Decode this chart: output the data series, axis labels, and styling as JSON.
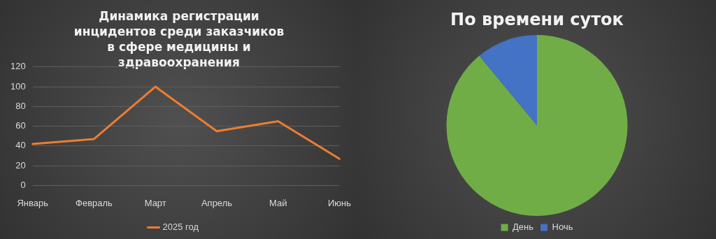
{
  "chart_data": [
    {
      "type": "line",
      "title": "Динамика регистрации инцидентов среди заказчиков в сфере медицины и здравоохранения",
      "categories": [
        "Январь",
        "Февраль",
        "Март",
        "Апрель",
        "Май",
        "Июнь"
      ],
      "series": [
        {
          "name": "2025 год",
          "color": "#ed7d31",
          "values": [
            42,
            47,
            100,
            55,
            65,
            27
          ]
        }
      ],
      "ylim": [
        0,
        120
      ],
      "yticks": [
        0,
        20,
        40,
        60,
        80,
        100,
        120
      ],
      "grid": "y",
      "legend": "bottom",
      "marker": "none",
      "line_style": "solid"
    },
    {
      "type": "pie",
      "title": "По времени суток",
      "categories": [
        "День",
        "Ночь"
      ],
      "values": [
        89,
        11
      ],
      "colors": [
        "#70ad47",
        "#4472c4"
      ],
      "legend": "bottom"
    }
  ]
}
